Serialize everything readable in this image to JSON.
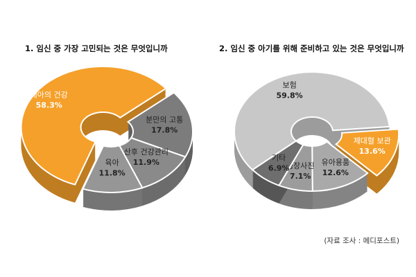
{
  "chart_data": [
    {
      "type": "pie",
      "title": "1. 임신 중 가장 고민되는 것은 무엇입니까",
      "slices": [
        {
          "label": "태아의 건강",
          "value": 58.3,
          "value_label": "58.3%",
          "color": "#f5a02a"
        },
        {
          "label": "분만의 고통",
          "value": 17.8,
          "value_label": "17.8%",
          "color": "#7c7c7c"
        },
        {
          "label": "산후 건강관리",
          "value": 11.9,
          "value_label": "11.9%",
          "color": "#8a8a8a"
        },
        {
          "label": "육아",
          "value": 11.8,
          "value_label": "11.8%",
          "color": "#969696"
        }
      ]
    },
    {
      "type": "pie",
      "title": "2. 임신 중 아기를 위해 준비하고 있는 것은 무엇입니까",
      "slices": [
        {
          "label": "보험",
          "value": 59.8,
          "value_label": "59.8%",
          "color": "#c8c8c8"
        },
        {
          "label": "제대혈 보관",
          "value": 13.6,
          "value_label": "13.6%",
          "color": "#f5a02a"
        },
        {
          "label": "유아용품",
          "value": 12.6,
          "value_label": "12.6%",
          "color": "#a9a9a9"
        },
        {
          "label": "성장사진",
          "value": 7.1,
          "value_label": "7.1%",
          "color": "#9c9c9c"
        },
        {
          "label": "기타",
          "value": 6.9,
          "value_label": "6.9%",
          "color": "#6e6e6e"
        }
      ]
    }
  ],
  "source_note": "(자료 조사 : 메디포스트)"
}
